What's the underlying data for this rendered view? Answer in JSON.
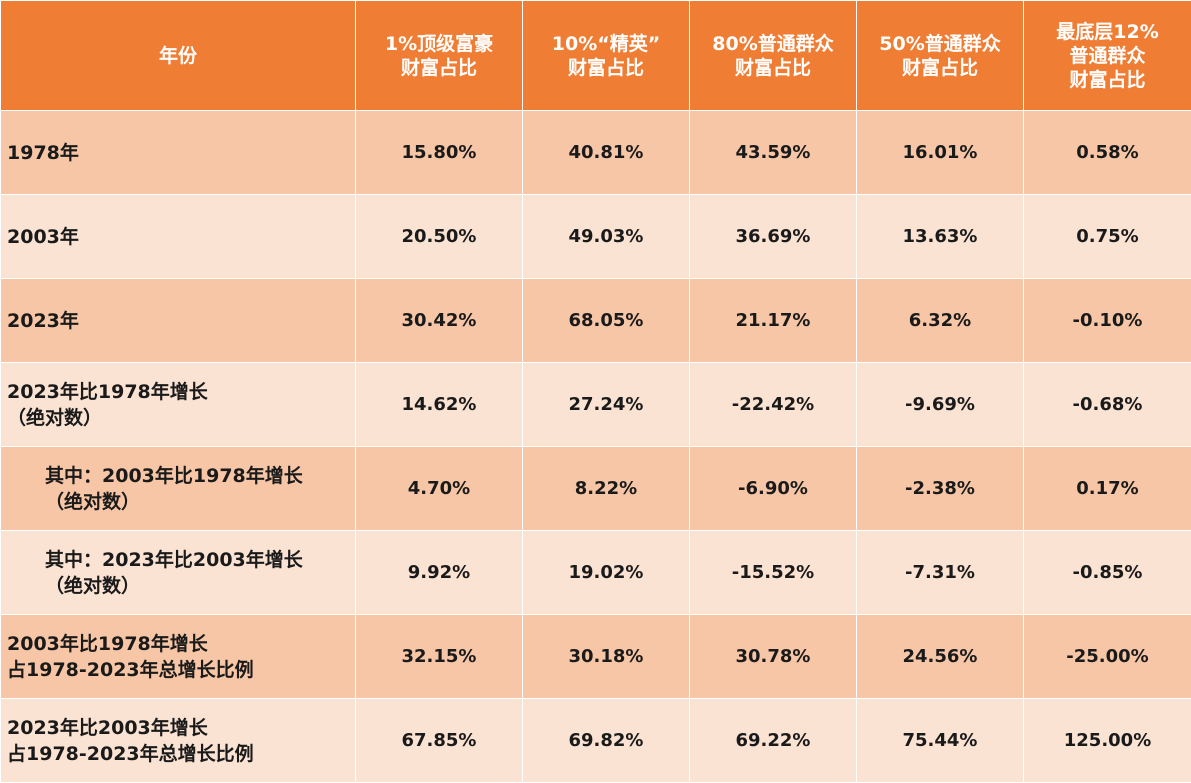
{
  "header": [
    [
      "年份"
    ],
    [
      "1%顶级富豪",
      "财富占比"
    ],
    [
      "10%“精英”",
      "财富占比"
    ],
    [
      "80%普通群众",
      "财富占比"
    ],
    [
      "50%普通群众",
      "财富占比"
    ],
    [
      "最底层12%",
      "普通群众",
      "财富占比"
    ]
  ],
  "rows": [
    {
      "label": [
        "1978年"
      ],
      "indent": false,
      "values": [
        "15.80%",
        "40.81%",
        "43.59%",
        "16.01%",
        "0.58%"
      ]
    },
    {
      "label": [
        "2003年"
      ],
      "indent": false,
      "values": [
        "20.50%",
        "49.03%",
        "36.69%",
        "13.63%",
        "0.75%"
      ]
    },
    {
      "label": [
        "2023年"
      ],
      "indent": false,
      "values": [
        "30.42%",
        "68.05%",
        "21.17%",
        "6.32%",
        "-0.10%"
      ]
    },
    {
      "label": [
        "2023年比1978年增长",
        "（绝对数）"
      ],
      "indent": false,
      "values": [
        "14.62%",
        "27.24%",
        "-22.42%",
        "-9.69%",
        "-0.68%"
      ]
    },
    {
      "label": [
        "其中：2003年比1978年增长",
        "（绝对数）"
      ],
      "indent": true,
      "values": [
        "4.70%",
        "8.22%",
        "-6.90%",
        "-2.38%",
        "0.17%"
      ]
    },
    {
      "label": [
        "其中：2023年比2003年增长",
        "（绝对数）"
      ],
      "indent": true,
      "values": [
        "9.92%",
        "19.02%",
        "-15.52%",
        "-7.31%",
        "-0.85%"
      ]
    },
    {
      "label": [
        "2003年比1978年增长",
        "占1978-2023年总增长比例"
      ],
      "indent": false,
      "values": [
        "32.15%",
        "30.18%",
        "30.78%",
        "24.56%",
        "-25.00%"
      ]
    },
    {
      "label": [
        "2023年比2003年增长",
        "占1978-2023年总增长比例"
      ],
      "indent": false,
      "values": [
        "67.85%",
        "69.82%",
        "69.22%",
        "75.44%",
        "125.00%"
      ]
    }
  ],
  "colors": {
    "header_bg": "#ef7d34",
    "row_dark": "#f7c6a6",
    "row_light": "#fbe3d4"
  }
}
